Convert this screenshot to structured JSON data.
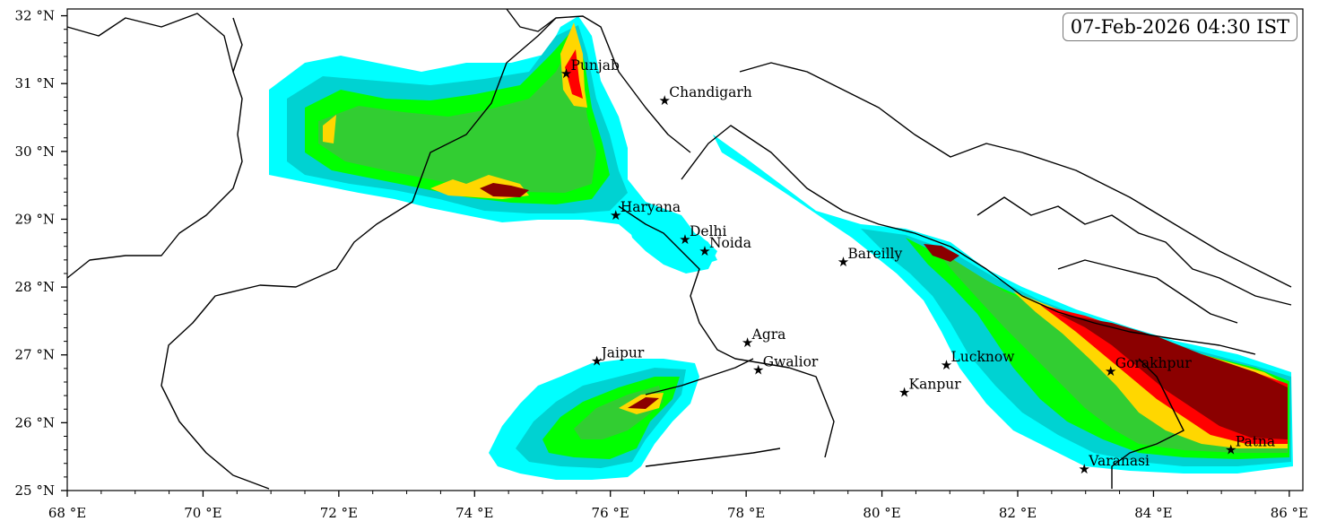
{
  "map": {
    "timestamp": "07-Feb-2026 04:30 IST",
    "lon_range": [
      68,
      86.2
    ],
    "lat_range": [
      25,
      32.1
    ],
    "lon_ticks": [
      {
        "value": 68,
        "label": "68 °E"
      },
      {
        "value": 70,
        "label": "70 °E"
      },
      {
        "value": 72,
        "label": "72 °E"
      },
      {
        "value": 74,
        "label": "74 °E"
      },
      {
        "value": 76,
        "label": "76 °E"
      },
      {
        "value": 78,
        "label": "78 °E"
      },
      {
        "value": 80,
        "label": "80 °E"
      },
      {
        "value": 82,
        "label": "82 °E"
      },
      {
        "value": 84,
        "label": "84 °E"
      },
      {
        "value": 86,
        "label": "86 °E"
      }
    ],
    "lat_ticks": [
      {
        "value": 25,
        "label": "25 °N"
      },
      {
        "value": 26,
        "label": "26 °N"
      },
      {
        "value": 27,
        "label": "27 °N"
      },
      {
        "value": 28,
        "label": "28 °N"
      },
      {
        "value": 29,
        "label": "29 °N"
      },
      {
        "value": 30,
        "label": "30 °N"
      },
      {
        "value": 31,
        "label": "31 °N"
      },
      {
        "value": 32,
        "label": "32 °N"
      }
    ],
    "cities": [
      {
        "name": "Punjab",
        "lon": 75.35,
        "lat": 31.15
      },
      {
        "name": "Chandigarh",
        "lon": 76.8,
        "lat": 30.75
      },
      {
        "name": "Haryana",
        "lon": 76.08,
        "lat": 29.06
      },
      {
        "name": "Delhi",
        "lon": 77.1,
        "lat": 28.7
      },
      {
        "name": "Noida",
        "lon": 77.39,
        "lat": 28.53
      },
      {
        "name": "Bareilly",
        "lon": 79.43,
        "lat": 28.37
      },
      {
        "name": "Agra",
        "lon": 78.02,
        "lat": 27.18
      },
      {
        "name": "Jaipur",
        "lon": 75.8,
        "lat": 26.91
      },
      {
        "name": "Gwalior",
        "lon": 78.18,
        "lat": 26.78
      },
      {
        "name": "Lucknow",
        "lon": 80.95,
        "lat": 26.85
      },
      {
        "name": "Kanpur",
        "lon": 80.33,
        "lat": 26.45
      },
      {
        "name": "Gorakhpur",
        "lon": 83.37,
        "lat": 26.76
      },
      {
        "name": "Varanasi",
        "lon": 82.98,
        "lat": 25.32
      },
      {
        "name": "Patna",
        "lon": 85.14,
        "lat": 25.6
      }
    ],
    "colors": {
      "level1": "#00ffff",
      "level2": "#00d2d2",
      "level3": "#00ff00",
      "level4": "#32cd32",
      "level5": "#ffd700",
      "level6": "#ff0000",
      "level7": "#8b0000",
      "border": "#000000"
    }
  }
}
